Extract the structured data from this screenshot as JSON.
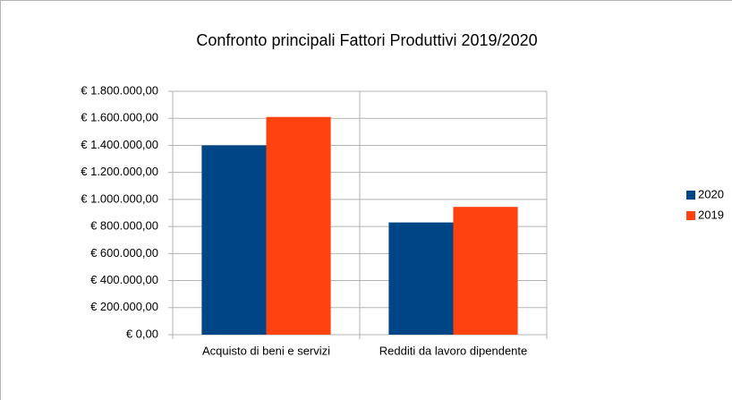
{
  "chart_data": {
    "type": "bar",
    "title": "Confronto principali Fattori Produttivi 2019/2020",
    "categories": [
      "Acquisto di beni e servizi",
      "Redditi da lavoro dipendente"
    ],
    "series": [
      {
        "name": "2020",
        "color": "#004586",
        "values": [
          1400000,
          830000
        ]
      },
      {
        "name": "2019",
        "color": "#ff420e",
        "values": [
          1610000,
          945000
        ]
      }
    ],
    "ylim": [
      0,
      1800000
    ],
    "yticks": [
      {
        "value": 0,
        "label": "€ 0,00"
      },
      {
        "value": 200000,
        "label": "€ 200.000,00"
      },
      {
        "value": 400000,
        "label": "€ 400.000,00"
      },
      {
        "value": 600000,
        "label": "€ 600.000,00"
      },
      {
        "value": 800000,
        "label": "€ 800.000,00"
      },
      {
        "value": 1000000,
        "label": "€ 1.000.000,00"
      },
      {
        "value": 1200000,
        "label": "€ 1.200.000,00"
      },
      {
        "value": 1400000,
        "label": "€ 1.400.000,00"
      },
      {
        "value": 1600000,
        "label": "€ 1.600.000,00"
      },
      {
        "value": 1800000,
        "label": "€ 1.800.000,00"
      }
    ],
    "grid": true,
    "legend": "right"
  }
}
